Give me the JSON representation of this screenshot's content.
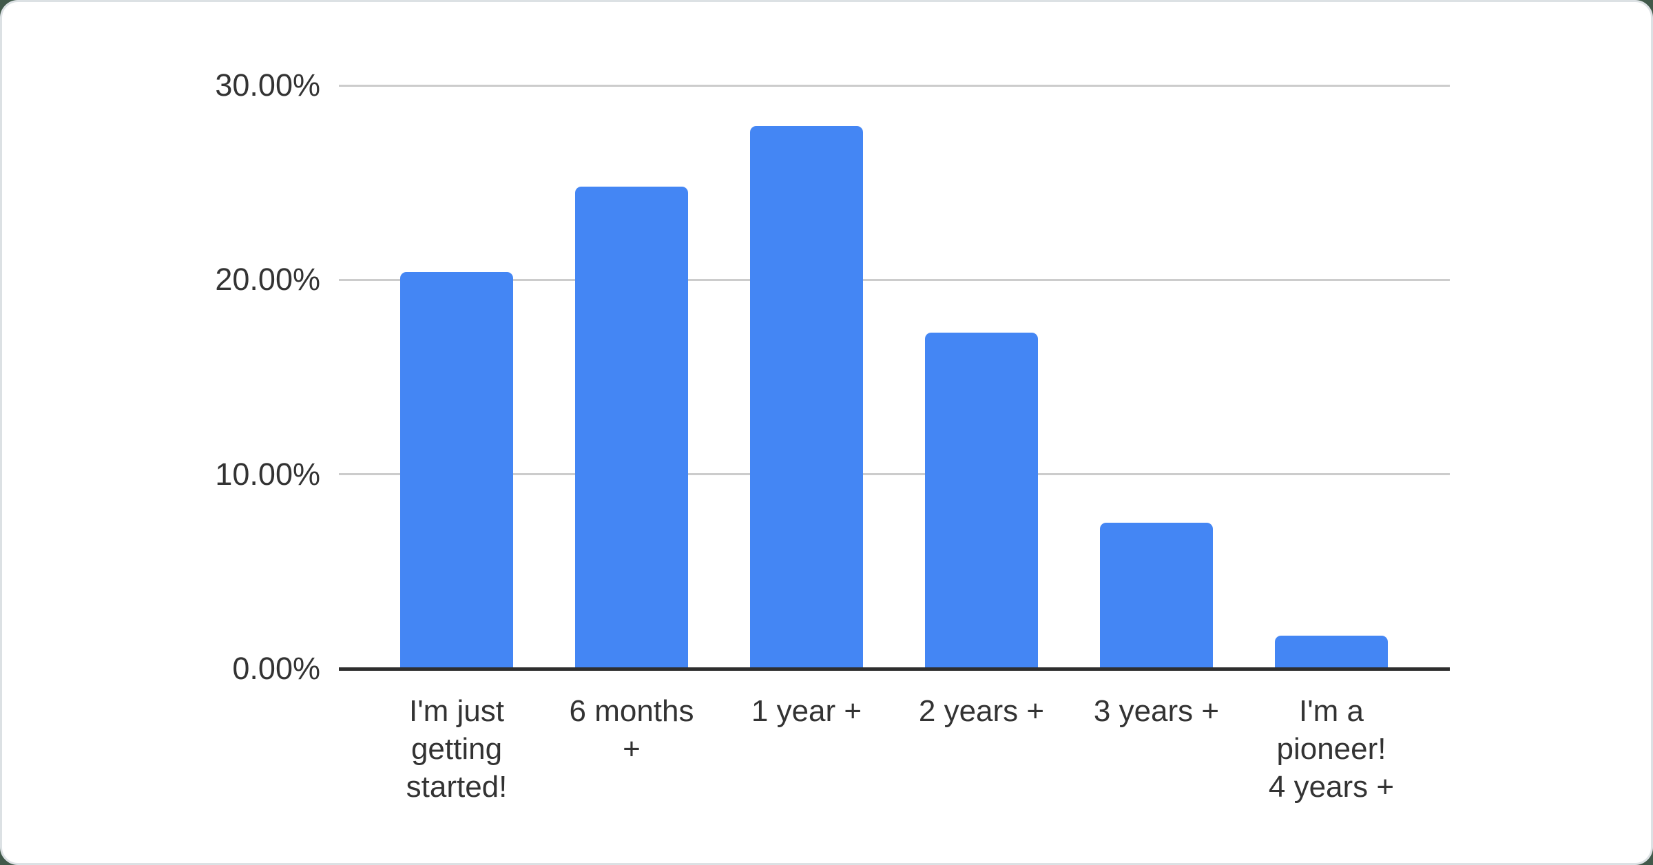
{
  "page": {
    "background_color": "#41594a",
    "card_background": "#ffffff",
    "card_border_color": "#dce1e4"
  },
  "chart_data": {
    "type": "bar",
    "title": "",
    "xlabel": "",
    "ylabel": "",
    "categories": [
      "I'm just getting started!",
      "6 months +",
      "1 year +",
      "2 years +",
      "3 years +",
      "I'm a pioneer! 4 years +"
    ],
    "category_display_lines": [
      [
        "I'm just",
        "getting",
        "started!"
      ],
      [
        "6 months",
        "+"
      ],
      [
        "1 year +"
      ],
      [
        "2 years +"
      ],
      [
        "3 years +"
      ],
      [
        "I'm a",
        "pioneer!",
        "4 years +"
      ]
    ],
    "values": [
      20.4,
      24.8,
      27.9,
      17.3,
      7.5,
      1.7
    ],
    "unit": "%",
    "ylim": [
      0,
      30
    ],
    "y_ticks": [
      {
        "value": 30,
        "label": "30.00%"
      },
      {
        "value": 20,
        "label": "20.00%"
      },
      {
        "value": 10,
        "label": "10.00%"
      },
      {
        "value": 0,
        "label": "0.00%"
      }
    ],
    "grid": true,
    "legend_position": "none",
    "bar_color": "#4486F4",
    "gridline_color": "#cccccc",
    "axis_line_color": "#2e2e2e",
    "label_color": "#333333"
  }
}
